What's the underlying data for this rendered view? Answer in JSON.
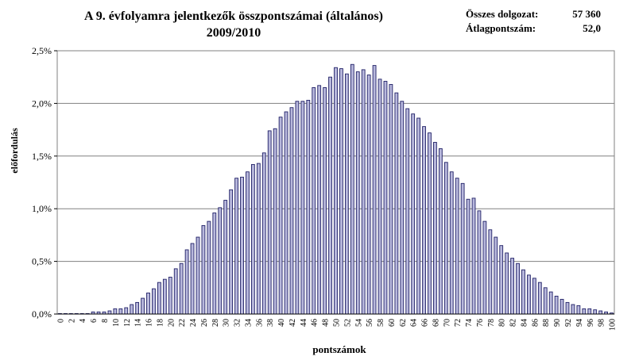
{
  "header": {
    "title_line1": "A 9. évfolyamra jelentkezők összpontszámai (általános)",
    "title_line2": "2009/2010"
  },
  "stats": {
    "total_label": "Összes dolgozat:",
    "total_value": "57 360",
    "avg_label": "Átlagpontszám:",
    "avg_value": "52,0"
  },
  "colors": {
    "bar_fill": "#b8b8dc",
    "bar_stroke": "#1f1f66",
    "grid": "#808080"
  },
  "chart_data": {
    "type": "bar",
    "title": "A 9. évfolyamra jelentkezők összpontszámai (általános) 2009/2010",
    "xlabel": "pontszámok",
    "ylabel": "előfordulás",
    "ylim": [
      0,
      2.5
    ],
    "yticks": [
      "0,0%",
      "0,5%",
      "1,0%",
      "1,5%",
      "2,0%",
      "2,5%"
    ],
    "grid": true,
    "legend": "none",
    "categories": [
      0,
      1,
      2,
      3,
      4,
      5,
      6,
      7,
      8,
      9,
      10,
      11,
      12,
      13,
      14,
      15,
      16,
      17,
      18,
      19,
      20,
      21,
      22,
      23,
      24,
      25,
      26,
      27,
      28,
      29,
      30,
      31,
      32,
      33,
      34,
      35,
      36,
      37,
      38,
      39,
      40,
      41,
      42,
      43,
      44,
      45,
      46,
      47,
      48,
      49,
      50,
      51,
      52,
      53,
      54,
      55,
      56,
      57,
      58,
      59,
      60,
      61,
      62,
      63,
      64,
      65,
      66,
      67,
      68,
      69,
      70,
      71,
      72,
      73,
      74,
      75,
      76,
      77,
      78,
      79,
      80,
      81,
      82,
      83,
      84,
      85,
      86,
      87,
      88,
      89,
      90,
      91,
      92,
      93,
      94,
      95,
      96,
      97,
      98,
      99,
      100
    ],
    "xtick_labels": [
      "0",
      "2",
      "4",
      "6",
      "8",
      "10",
      "12",
      "14",
      "16",
      "18",
      "20",
      "22",
      "24",
      "26",
      "28",
      "30",
      "32",
      "34",
      "36",
      "38",
      "40",
      "42",
      "44",
      "46",
      "48",
      "50",
      "52",
      "54",
      "56",
      "58",
      "60",
      "62",
      "64",
      "66",
      "68",
      "70",
      "72",
      "74",
      "76",
      "78",
      "80",
      "82",
      "84",
      "86",
      "88",
      "90",
      "92",
      "94",
      "96",
      "98",
      "100"
    ],
    "values": [
      0.0,
      0.0,
      0.0,
      0.0,
      0.0,
      0.0,
      0.02,
      0.02,
      0.02,
      0.03,
      0.05,
      0.05,
      0.06,
      0.09,
      0.11,
      0.15,
      0.2,
      0.24,
      0.3,
      0.33,
      0.35,
      0.43,
      0.48,
      0.61,
      0.67,
      0.73,
      0.84,
      0.88,
      0.96,
      1.01,
      1.08,
      1.18,
      1.29,
      1.3,
      1.35,
      1.42,
      1.43,
      1.53,
      1.74,
      1.76,
      1.87,
      1.92,
      1.96,
      2.02,
      2.02,
      2.03,
      2.15,
      2.17,
      2.15,
      2.25,
      2.34,
      2.33,
      2.28,
      2.37,
      2.3,
      2.32,
      2.27,
      2.36,
      2.23,
      2.21,
      2.18,
      2.1,
      2.02,
      1.95,
      1.9,
      1.86,
      1.78,
      1.72,
      1.63,
      1.57,
      1.44,
      1.35,
      1.29,
      1.24,
      1.09,
      1.1,
      0.98,
      0.88,
      0.8,
      0.73,
      0.65,
      0.58,
      0.53,
      0.48,
      0.42,
      0.37,
      0.34,
      0.3,
      0.25,
      0.21,
      0.17,
      0.14,
      0.11,
      0.09,
      0.08,
      0.05,
      0.05,
      0.04,
      0.03,
      0.02,
      0.01
    ]
  }
}
